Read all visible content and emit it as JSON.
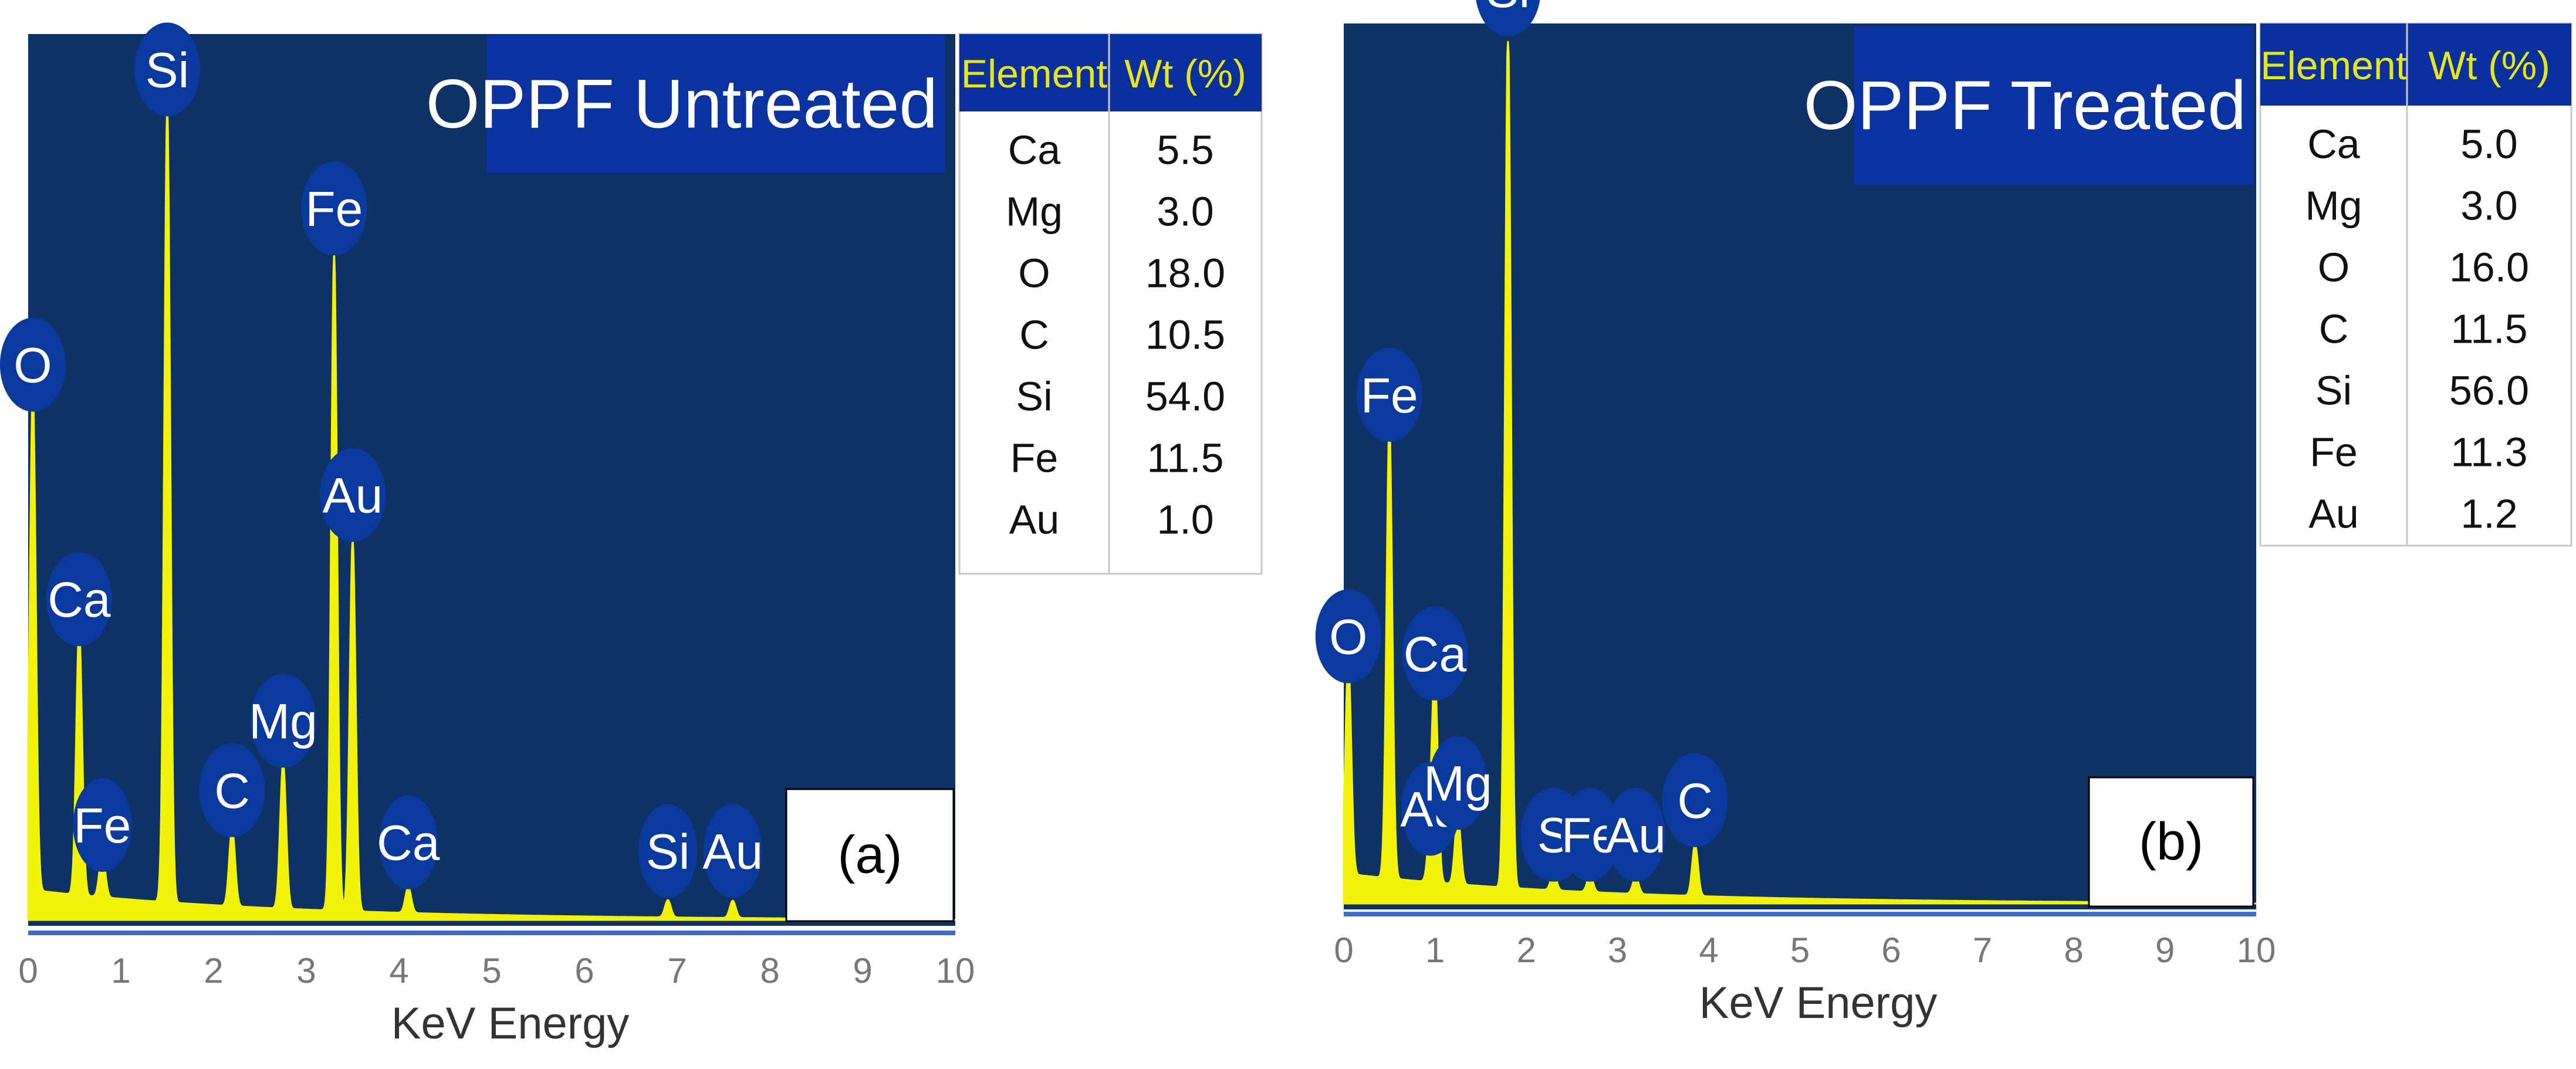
{
  "chart_data": [
    {
      "panel": "a",
      "type": "area",
      "title": "OPPF Untreated",
      "panel_label": "(a)",
      "xlabel": "KeV Energy",
      "ylabel": "",
      "xlim": [
        0,
        10
      ],
      "x_ticks": [
        "0",
        "1",
        "2",
        "3",
        "4",
        "5",
        "6",
        "7",
        "8",
        "9",
        "10"
      ],
      "grid": false,
      "colors": {
        "plot_bg": "#0f3266",
        "spectrum": "#f2f20a",
        "peak_label_bg": "#0b3a9e",
        "title_bg": "#0a32a0"
      },
      "peaks": [
        {
          "label": "O",
          "x": 0.05,
          "height": 0.58
        },
        {
          "label": "Ca",
          "x": 0.55,
          "height": 0.31
        },
        {
          "label": "Fe",
          "x": 0.8,
          "height": 0.05
        },
        {
          "label": "Si",
          "x": 1.5,
          "height": 0.92
        },
        {
          "label": "C",
          "x": 2.2,
          "height": 0.09
        },
        {
          "label": "Mg",
          "x": 2.75,
          "height": 0.17
        },
        {
          "label": "Fe",
          "x": 3.3,
          "height": 0.76
        },
        {
          "label": "Au",
          "x": 3.5,
          "height": 0.43
        },
        {
          "label": "Ca",
          "x": 4.1,
          "height": 0.03
        },
        {
          "label": "Si",
          "x": 6.9,
          "height": 0.02
        },
        {
          "label": "Au",
          "x": 7.6,
          "height": 0.02
        }
      ],
      "table": {
        "headers": [
          "Element",
          "Wt (%)"
        ],
        "rows": [
          [
            "Ca",
            "5.5"
          ],
          [
            "Mg",
            "3.0"
          ],
          [
            "O",
            "18.0"
          ],
          [
            "C",
            "10.5"
          ],
          [
            "Si",
            "54.0"
          ],
          [
            "Fe",
            "11.5"
          ],
          [
            "Au",
            "1.0"
          ]
        ]
      }
    },
    {
      "panel": "b",
      "type": "area",
      "title": "OPPF Treated",
      "panel_label": "(b)",
      "xlabel": "KeV Energy",
      "ylabel": "",
      "xlim": [
        0,
        10
      ],
      "x_ticks": [
        "0",
        "1",
        "2",
        "3",
        "4",
        "5",
        "6",
        "7",
        "8",
        "9",
        "10"
      ],
      "grid": false,
      "colors": {
        "plot_bg": "#0f3266",
        "spectrum": "#f2f20a",
        "peak_label_bg": "#0b3a9e",
        "title_bg": "#0a32a0"
      },
      "peaks": [
        {
          "label": "O",
          "x": 0.05,
          "height": 0.25
        },
        {
          "label": "Fe",
          "x": 0.5,
          "height": 0.53
        },
        {
          "label": "Ca",
          "x": 1.0,
          "height": 0.23
        },
        {
          "label": "Au",
          "x": 0.95,
          "height": 0.05
        },
        {
          "label": "Mg",
          "x": 1.25,
          "height": 0.08
        },
        {
          "label": "Si",
          "x": 1.8,
          "height": 1.0
        },
        {
          "label": "S",
          "x": 2.3,
          "height": 0.02
        },
        {
          "label": "Fe",
          "x": 2.7,
          "height": 0.02
        },
        {
          "label": "Au",
          "x": 3.2,
          "height": 0.02
        },
        {
          "label": "C",
          "x": 3.85,
          "height": 0.06
        }
      ],
      "table": {
        "headers": [
          "Element",
          "Wt (%)"
        ],
        "rows": [
          [
            "Ca",
            "5.0"
          ],
          [
            "Mg",
            "3.0"
          ],
          [
            "O",
            "16.0"
          ],
          [
            "C",
            "11.5"
          ],
          [
            "Si",
            "56.0"
          ],
          [
            "Fe",
            "11.3"
          ],
          [
            "Au",
            "1.2"
          ]
        ]
      }
    }
  ]
}
